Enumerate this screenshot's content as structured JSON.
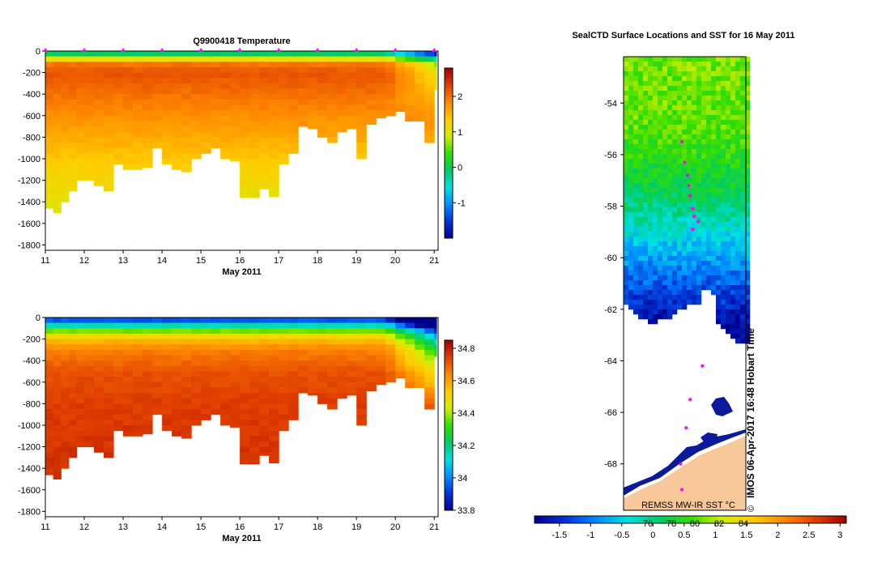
{
  "colors": {
    "rainbow": [
      "#00008b",
      "#0033d4",
      "#008cff",
      "#00e0e0",
      "#00cc66",
      "#33dd00",
      "#d2ee00",
      "#ffcc00",
      "#ff8800",
      "#e04000",
      "#a00000"
    ],
    "land": "#f8c89a",
    "ice": "#ffffff",
    "profile_marker": "#ff00ff"
  },
  "chart_data": [
    {
      "type": "heatmap",
      "panel": "temperature",
      "title": "Q9900418  Temperature",
      "xlabel": "May 2011",
      "ylabel": "",
      "x_ticks": [
        "11",
        "12",
        "13",
        "14",
        "15",
        "16",
        "17",
        "18",
        "19",
        "20",
        "21"
      ],
      "y_ticks": [
        "0",
        "-200",
        "-400",
        "-600",
        "-800",
        "-1000",
        "-1200",
        "-1400",
        "-1600",
        "-1800"
      ],
      "xlim": [
        11,
        21.1
      ],
      "ylim": [
        -1850,
        0
      ],
      "profile_days": [
        11.0,
        11.2,
        11.4,
        11.6,
        11.8,
        12.0,
        12.25,
        12.5,
        12.75,
        13.0,
        13.25,
        13.5,
        13.75,
        14.0,
        14.25,
        14.5,
        14.75,
        15.0,
        15.25,
        15.5,
        15.75,
        16.0,
        16.25,
        16.5,
        16.75,
        17.0,
        17.25,
        17.5,
        17.75,
        18.0,
        18.25,
        18.5,
        18.75,
        19.0,
        19.25,
        19.5,
        19.75,
        20.0,
        20.25,
        20.5,
        20.75,
        21.0
      ],
      "profile_max_depth_m": [
        1460,
        1500,
        1400,
        1300,
        1200,
        1200,
        1250,
        1300,
        1050,
        1100,
        1100,
        1080,
        900,
        1050,
        1100,
        1120,
        1000,
        950,
        900,
        1000,
        1020,
        1360,
        1360,
        1280,
        1350,
        1050,
        950,
        700,
        720,
        800,
        850,
        750,
        720,
        1000,
        680,
        620,
        600,
        560,
        650,
        650,
        850,
        360
      ],
      "marker_days": [
        11,
        12,
        13,
        14,
        15,
        16,
        17,
        18,
        19,
        20,
        21
      ],
      "colorbar": {
        "min": -2,
        "max": 2.8,
        "ticks": [
          "2",
          "1",
          "0",
          "-1"
        ]
      },
      "value_profile_by_depth": {
        "depth_m": [
          0,
          50,
          100,
          200,
          300,
          500,
          800,
          1100,
          1500
        ],
        "value": [
          -0.3,
          0.2,
          1.9,
          2.2,
          2.1,
          1.9,
          1.6,
          1.3,
          1.0
        ]
      }
    },
    {
      "type": "heatmap",
      "panel": "salinity",
      "title": "",
      "xlabel": "May 2011",
      "ylabel": "",
      "x_ticks": [
        "11",
        "12",
        "13",
        "14",
        "15",
        "16",
        "17",
        "18",
        "19",
        "20",
        "21"
      ],
      "y_ticks": [
        "0",
        "-200",
        "-400",
        "-600",
        "-800",
        "-1000",
        "-1200",
        "-1400",
        "-1600",
        "-1800"
      ],
      "xlim": [
        11,
        21.1
      ],
      "ylim": [
        -1850,
        0
      ],
      "colorbar": {
        "min": 33.8,
        "max": 34.85,
        "ticks": [
          "34.8",
          "34.6",
          "34.4",
          "34.2",
          "34",
          "33.8"
        ]
      },
      "value_profile_by_depth": {
        "depth_m": [
          0,
          50,
          100,
          200,
          300,
          500,
          800,
          1100,
          1500
        ],
        "value": [
          33.9,
          34.0,
          34.3,
          34.55,
          34.65,
          34.72,
          34.75,
          34.76,
          34.77
        ]
      }
    },
    {
      "type": "heatmap",
      "panel": "map",
      "title": "SealCTD Surface Locations and SST for 16 May 2011",
      "xlabel": "",
      "ylabel": "",
      "y_ticks": [
        "-54",
        "-56",
        "-58",
        "-60",
        "-62",
        "-64",
        "-66",
        "-68"
      ],
      "x_ticks": [
        "76",
        "78",
        "80",
        "82",
        "84"
      ],
      "ylim": [
        -69.8,
        -52.2
      ],
      "xlim": [
        75,
        84
      ],
      "colorbar": {
        "min": -1.9,
        "max": 3.1,
        "ticks": [
          "-1.5",
          "-1",
          "-0.5",
          "0",
          "0.5",
          "1",
          "1.5",
          "2",
          "2.5",
          "3"
        ]
      },
      "sst_by_latitude": {
        "lat": [
          -52.5,
          -55,
          -57,
          -59,
          -61,
          -62.5
        ],
        "value": [
          0.8,
          0.7,
          0.3,
          -0.4,
          -1.2,
          -1.8
        ]
      },
      "track_points": [
        {
          "lat": -55.5,
          "lon": 79.3
        },
        {
          "lat": -56.3,
          "lon": 79.5
        },
        {
          "lat": -56.8,
          "lon": 79.7
        },
        {
          "lat": -57.2,
          "lon": 79.8
        },
        {
          "lat": -57.6,
          "lon": 79.9
        },
        {
          "lat": -58.1,
          "lon": 80.1
        },
        {
          "lat": -58.4,
          "lon": 80.2
        },
        {
          "lat": -58.6,
          "lon": 80.5
        },
        {
          "lat": -58.9,
          "lon": 80.1
        },
        {
          "lat": -64.2,
          "lon": 80.8
        },
        {
          "lat": -65.5,
          "lon": 79.9
        },
        {
          "lat": -66.6,
          "lon": 79.6
        },
        {
          "lat": -68.0,
          "lon": 79.2
        },
        {
          "lat": -69.0,
          "lon": 79.3
        }
      ],
      "source_label": "REMSS MW-IR SST °C",
      "stamp": "IMOS 06-Apr-2017 16:48 Hobart Time",
      "copyright": "©"
    }
  ]
}
